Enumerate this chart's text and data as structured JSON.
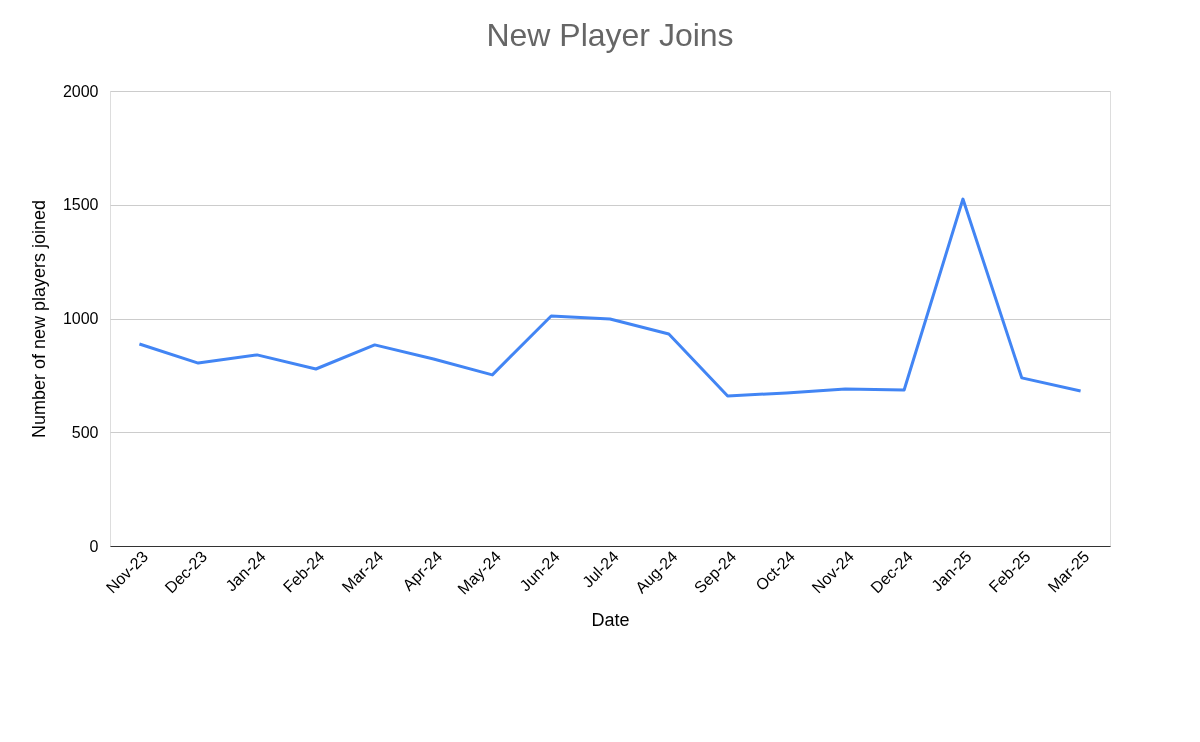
{
  "chart_data": {
    "type": "line",
    "title": "New Player Joins",
    "xlabel": "Date",
    "ylabel": "Number of new players joined",
    "categories": [
      "Nov-23",
      "Dec-23",
      "Jan-24",
      "Feb-24",
      "Mar-24",
      "Apr-24",
      "May-24",
      "Jun-24",
      "Jul-24",
      "Aug-24",
      "Sep-24",
      "Oct-24",
      "Nov-24",
      "Dec-24",
      "Jan-25",
      "Feb-25",
      "Mar-25"
    ],
    "series": [
      {
        "color": "#4285f4",
        "values": [
          888,
          804,
          840,
          778,
          884,
          822,
          752,
          1011,
          998,
          932,
          659,
          673,
          690,
          686,
          1525,
          739,
          681
        ]
      }
    ],
    "ylim": [
      0,
      2000
    ],
    "yticks": [
      0,
      500,
      1000,
      1500,
      2000
    ],
    "grid": "y",
    "marker": "none",
    "line_style": "solid"
  }
}
